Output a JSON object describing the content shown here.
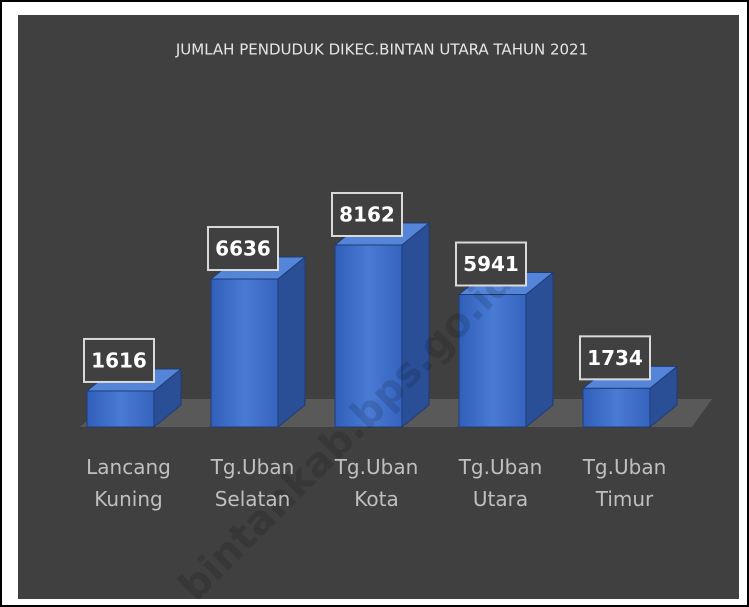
{
  "chart_data": {
    "type": "bar3d",
    "title": "JUMLAH PENDUDUK DIKEC.BINTAN UTARA TAHUN 2021",
    "categories": [
      "Lancang Kuning",
      "Tg.Uban Selatan",
      "Tg.Uban Kota",
      "Tg.Uban Utara",
      "Tg.Uban Timur"
    ],
    "values": [
      1616,
      6636,
      8162,
      5941,
      1734
    ],
    "color": "#4472c4",
    "watermark": "bintankab.bps.go.id"
  }
}
